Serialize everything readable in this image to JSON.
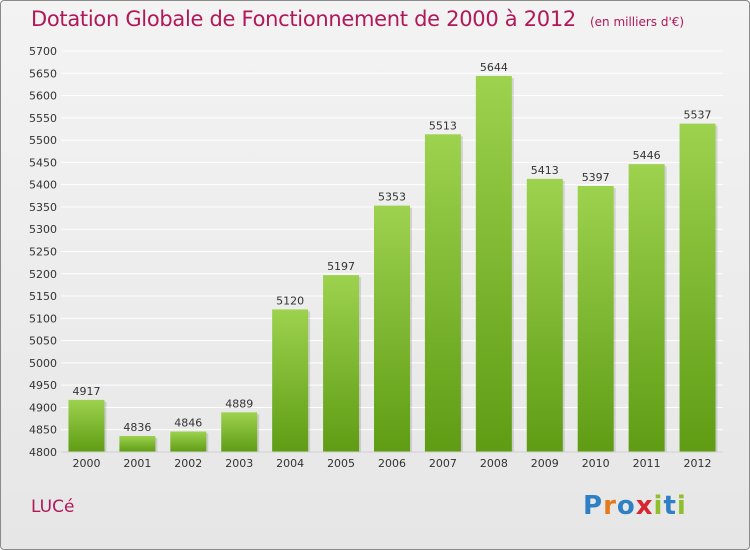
{
  "title": "Dotation Globale de Fonctionnement de 2000 à 2012",
  "subtitle": "(en milliers d'€)",
  "commune": "LUCé",
  "logo": {
    "text": "Proxiti",
    "letter_colors": [
      "#2f7fc4",
      "#e57a1d",
      "#2f7fc4",
      "#d7262f",
      "#8fbf2a",
      "#2f7fc4",
      "#8fbf2a"
    ]
  },
  "colors": {
    "bar_top": "#9dd24e",
    "bar_bottom": "#5f9c14",
    "grid": "#ffffff",
    "title": "#b0185a"
  },
  "chart_data": {
    "type": "bar",
    "title": "Dotation Globale de Fonctionnement de 2000 à 2012",
    "subtitle": "(en milliers d'€)",
    "categories": [
      "2000",
      "2001",
      "2002",
      "2003",
      "2004",
      "2005",
      "2006",
      "2007",
      "2008",
      "2009",
      "2010",
      "2011",
      "2012"
    ],
    "values": [
      4917,
      4836,
      4846,
      4889,
      5120,
      5197,
      5353,
      5513,
      5644,
      5413,
      5397,
      5446,
      5537
    ],
    "ylim": [
      4800,
      5700
    ],
    "yticks": [
      4800,
      4850,
      4900,
      4950,
      5000,
      5050,
      5100,
      5150,
      5200,
      5250,
      5300,
      5350,
      5400,
      5450,
      5500,
      5550,
      5600,
      5650,
      5700
    ],
    "grid": true,
    "data_labels": true
  }
}
